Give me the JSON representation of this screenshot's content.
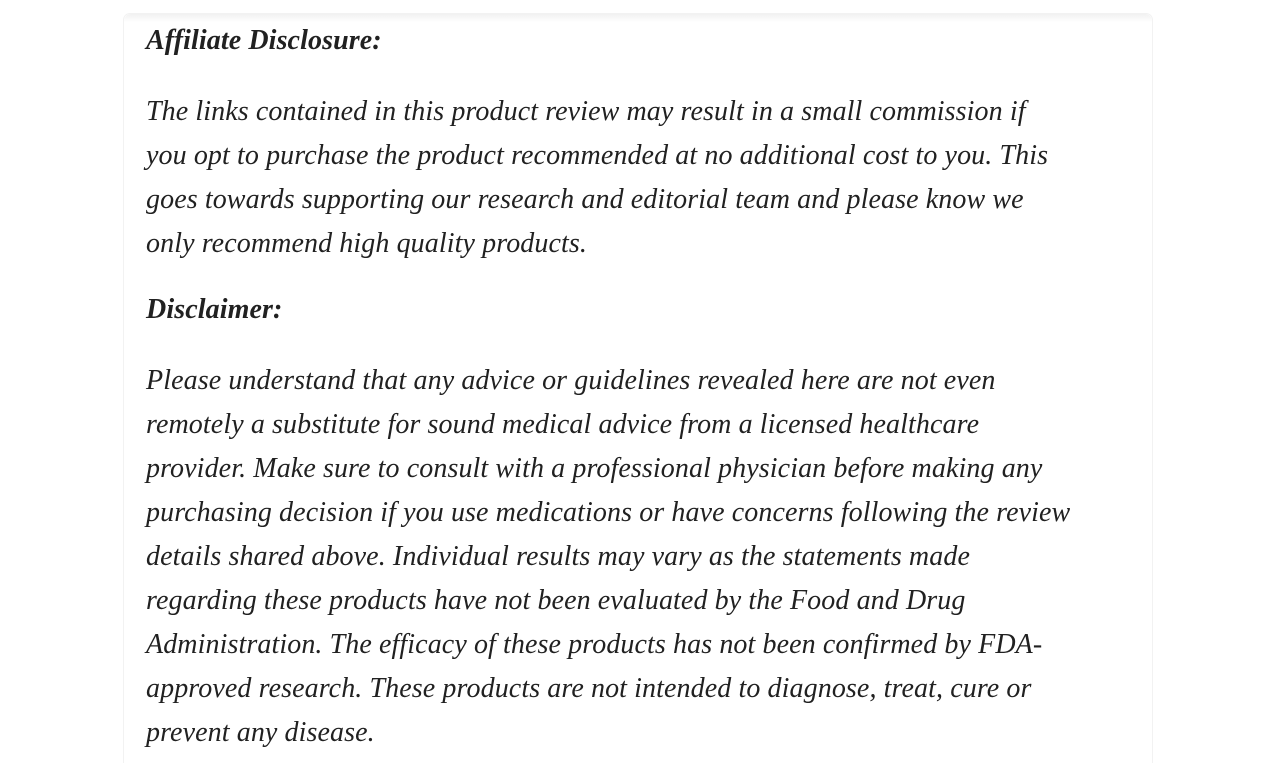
{
  "page": {
    "background_color": "#ffffff",
    "column_background_color": "#ffffff",
    "column_border_color": "#f2f2f2",
    "text_color": "#212121"
  },
  "article": {
    "sections": [
      {
        "heading": "Affiliate Disclosure:",
        "paragraph_lines": [
          "The links contained in this product review may result in a small commission if",
          "you opt to purchase the product recommended at no additional cost to you. This",
          "goes towards supporting our research and editorial team and please know we",
          "only recommend high quality products."
        ]
      },
      {
        "heading": "Disclaimer:",
        "paragraph_lines": [
          "Please understand that any advice or guidelines revealed here are not even",
          "remotely a substitute for sound medical advice from a licensed healthcare",
          "provider. Make sure to consult with a professional physician before making any",
          "purchasing decision if you use medications or have concerns following the review",
          "details shared above. Individual results may vary as the statements made",
          "regarding these products have not been evaluated by the Food and Drug",
          "Administration. The efficacy of these products has not been confirmed by FDA-",
          "approved research. These products are not intended to diagnose, treat, cure or",
          "prevent any disease."
        ]
      }
    ]
  }
}
